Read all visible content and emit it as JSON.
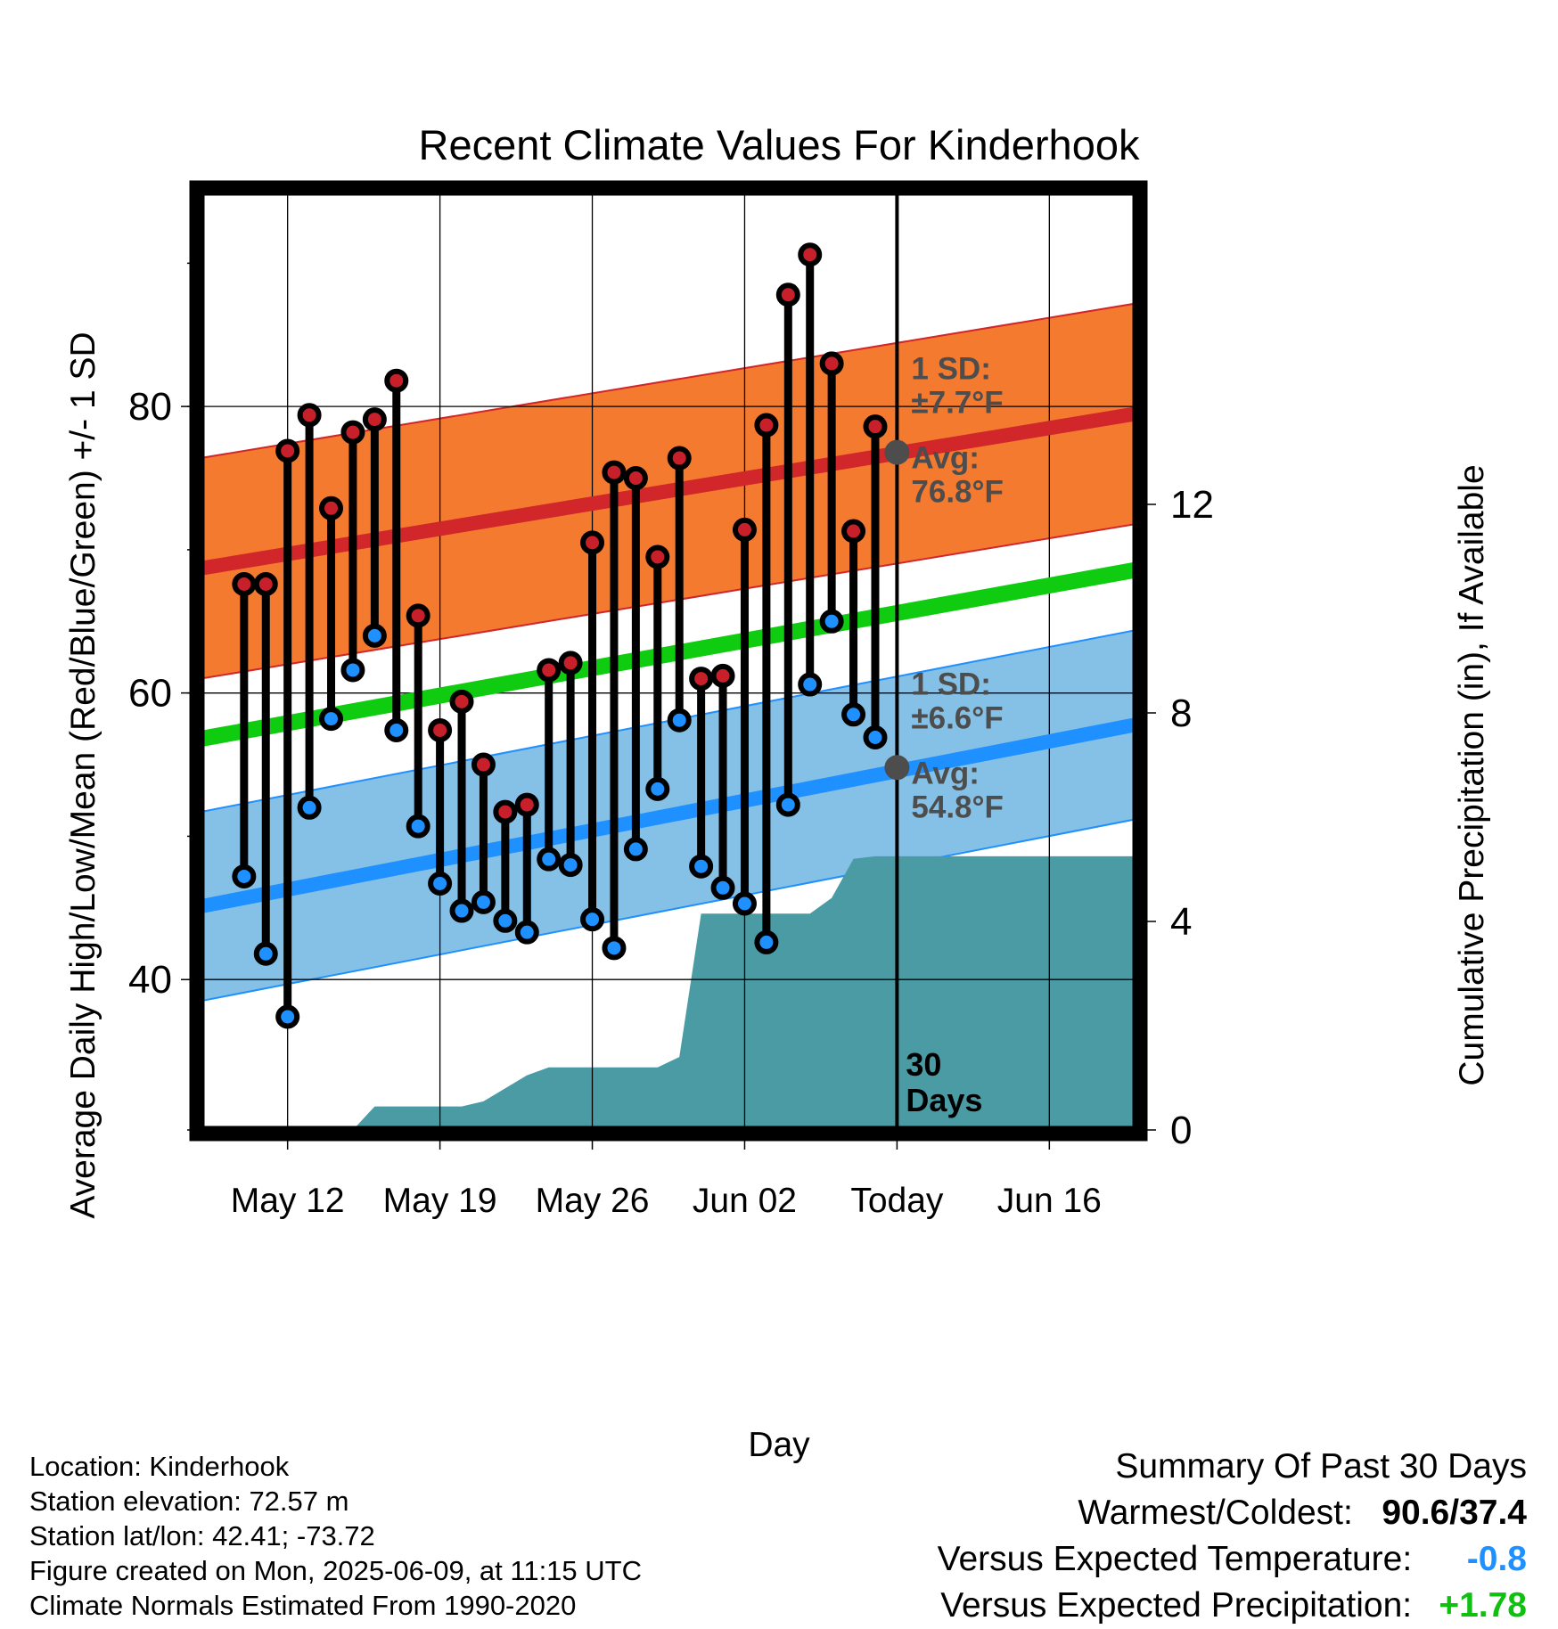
{
  "chart_data": {
    "type": "line",
    "title": "Recent Climate Values For Kinderhook",
    "xlabel": "Day",
    "ylabel": "Average Daily High/Low/Mean (Red/Blue/Green) +/- 1 SD",
    "y2label": "Cumulative Precipitation (in), If Available",
    "xlim": [
      "2025-05-08",
      "2025-06-20"
    ],
    "ylim": [
      29.5,
      95
    ],
    "y2lim": [
      0,
      18
    ],
    "x_ticks": [
      {
        "date": "2025-05-12",
        "label": "May 12"
      },
      {
        "date": "2025-05-19",
        "label": "May 19"
      },
      {
        "date": "2025-05-26",
        "label": "May 26"
      },
      {
        "date": "2025-06-02",
        "label": "Jun 02"
      },
      {
        "date": "2025-06-09",
        "label": "Today"
      },
      {
        "date": "2025-06-16",
        "label": "Jun 16"
      }
    ],
    "y_ticks": [
      40,
      60,
      80
    ],
    "y2_ticks": [
      0,
      4,
      8,
      12
    ],
    "grid": true,
    "today": "2025-06-09",
    "today_label": "30 Days",
    "normal_high": {
      "start": 68.7,
      "end": 79.5,
      "sd": 7.7
    },
    "normal_low": {
      "start": 45.1,
      "end": 57.8,
      "sd": 6.6
    },
    "normal_mean": {
      "start": 56.8,
      "end": 68.6
    },
    "high_annotation": {
      "sd_label": "1 SD:",
      "sd_value": "±7.7°F",
      "avg_label": "Avg:",
      "avg_value": "76.8°F",
      "avg": 76.8
    },
    "low_annotation": {
      "sd_label": "1 SD:",
      "sd_value": "±6.6°F",
      "avg_label": "Avg:",
      "avg_value": "54.8°F",
      "avg": 54.8
    },
    "daily": [
      {
        "date": "2025-05-10",
        "high": 67.6,
        "low": 47.2
      },
      {
        "date": "2025-05-11",
        "high": 67.6,
        "low": 41.8
      },
      {
        "date": "2025-05-12",
        "high": 76.9,
        "low": 37.4
      },
      {
        "date": "2025-05-13",
        "high": 79.4,
        "low": 52.0
      },
      {
        "date": "2025-05-14",
        "high": 72.9,
        "low": 58.2
      },
      {
        "date": "2025-05-15",
        "high": 78.2,
        "low": 61.6
      },
      {
        "date": "2025-05-16",
        "high": 79.1,
        "low": 64.0
      },
      {
        "date": "2025-05-17",
        "high": 81.8,
        "low": 57.4
      },
      {
        "date": "2025-05-18",
        "high": 65.4,
        "low": 50.7
      },
      {
        "date": "2025-05-19",
        "high": 57.4,
        "low": 46.7
      },
      {
        "date": "2025-05-20",
        "high": 59.4,
        "low": 44.8
      },
      {
        "date": "2025-05-21",
        "high": 55.0,
        "low": 45.4
      },
      {
        "date": "2025-05-22",
        "high": 51.7,
        "low": 44.1
      },
      {
        "date": "2025-05-23",
        "high": 52.2,
        "low": 43.3
      },
      {
        "date": "2025-05-24",
        "high": 61.6,
        "low": 48.4
      },
      {
        "date": "2025-05-25",
        "high": 62.1,
        "low": 48.0
      },
      {
        "date": "2025-05-26",
        "high": 70.5,
        "low": 44.2
      },
      {
        "date": "2025-05-27",
        "high": 75.4,
        "low": 42.2
      },
      {
        "date": "2025-05-28",
        "high": 75.0,
        "low": 49.1
      },
      {
        "date": "2025-05-29",
        "high": 69.5,
        "low": 53.3
      },
      {
        "date": "2025-05-30",
        "high": 76.4,
        "low": 58.1
      },
      {
        "date": "2025-05-31",
        "high": 61.0,
        "low": 47.9
      },
      {
        "date": "2025-06-01",
        "high": 61.2,
        "low": 46.4
      },
      {
        "date": "2025-06-02",
        "high": 71.4,
        "low": 45.3
      },
      {
        "date": "2025-06-03",
        "high": 78.7,
        "low": 42.6
      },
      {
        "date": "2025-06-04",
        "high": 87.8,
        "low": 52.2
      },
      {
        "date": "2025-06-05",
        "high": 90.6,
        "low": 60.6
      },
      {
        "date": "2025-06-06",
        "high": 83.0,
        "low": 65.0
      },
      {
        "date": "2025-06-07",
        "high": 71.3,
        "low": 58.5
      },
      {
        "date": "2025-06-08",
        "high": 78.6,
        "low": 56.9
      }
    ],
    "precip_cumulative": [
      {
        "date": "2025-05-15",
        "value": 0
      },
      {
        "date": "2025-05-16",
        "value": 0.45
      },
      {
        "date": "2025-05-19",
        "value": 0.45
      },
      {
        "date": "2025-05-20",
        "value": 0.45
      },
      {
        "date": "2025-05-21",
        "value": 0.55
      },
      {
        "date": "2025-05-22",
        "value": 0.8
      },
      {
        "date": "2025-05-23",
        "value": 1.05
      },
      {
        "date": "2025-05-24",
        "value": 1.2
      },
      {
        "date": "2025-05-29",
        "value": 1.2
      },
      {
        "date": "2025-05-30",
        "value": 1.4
      },
      {
        "date": "2025-05-31",
        "value": 4.15
      },
      {
        "date": "2025-06-05",
        "value": 4.15
      },
      {
        "date": "2025-06-06",
        "value": 4.45
      },
      {
        "date": "2025-06-07",
        "value": 5.2
      },
      {
        "date": "2025-06-08",
        "value": 5.25
      },
      {
        "date": "2025-06-20",
        "value": 5.25
      }
    ]
  },
  "footer": {
    "location": "Location: Kinderhook",
    "elevation": "Station elevation: 72.57 m",
    "latlon": "Station lat/lon: 42.41; -73.72",
    "created": "Figure created on Mon, 2025-06-09, at 11:15 UTC",
    "normals": "Climate Normals Estimated From 1990-2020"
  },
  "summary": {
    "title": "Summary Of Past 30 Days",
    "warm_cold_label": "Warmest/Coldest:",
    "warm_cold_value": "90.6/37.4",
    "temp_label": "Versus Expected Temperature:",
    "temp_value": "-0.8",
    "precip_label": "Versus Expected Precipitation:",
    "precip_value": "+1.78"
  },
  "colors": {
    "high_band": "#f47a30",
    "high_line": "#d1262a",
    "low_band": "#85c1e7",
    "low_line": "#1e90ff",
    "mean_line": "#10cc10",
    "precip": "#4a9ba3",
    "high_dot": "#c8202a",
    "low_dot": "#1e90ff",
    "annotation": "#4d4d4d",
    "temp_anomaly": "#1e90ff",
    "precip_anomaly": "#10c010"
  }
}
